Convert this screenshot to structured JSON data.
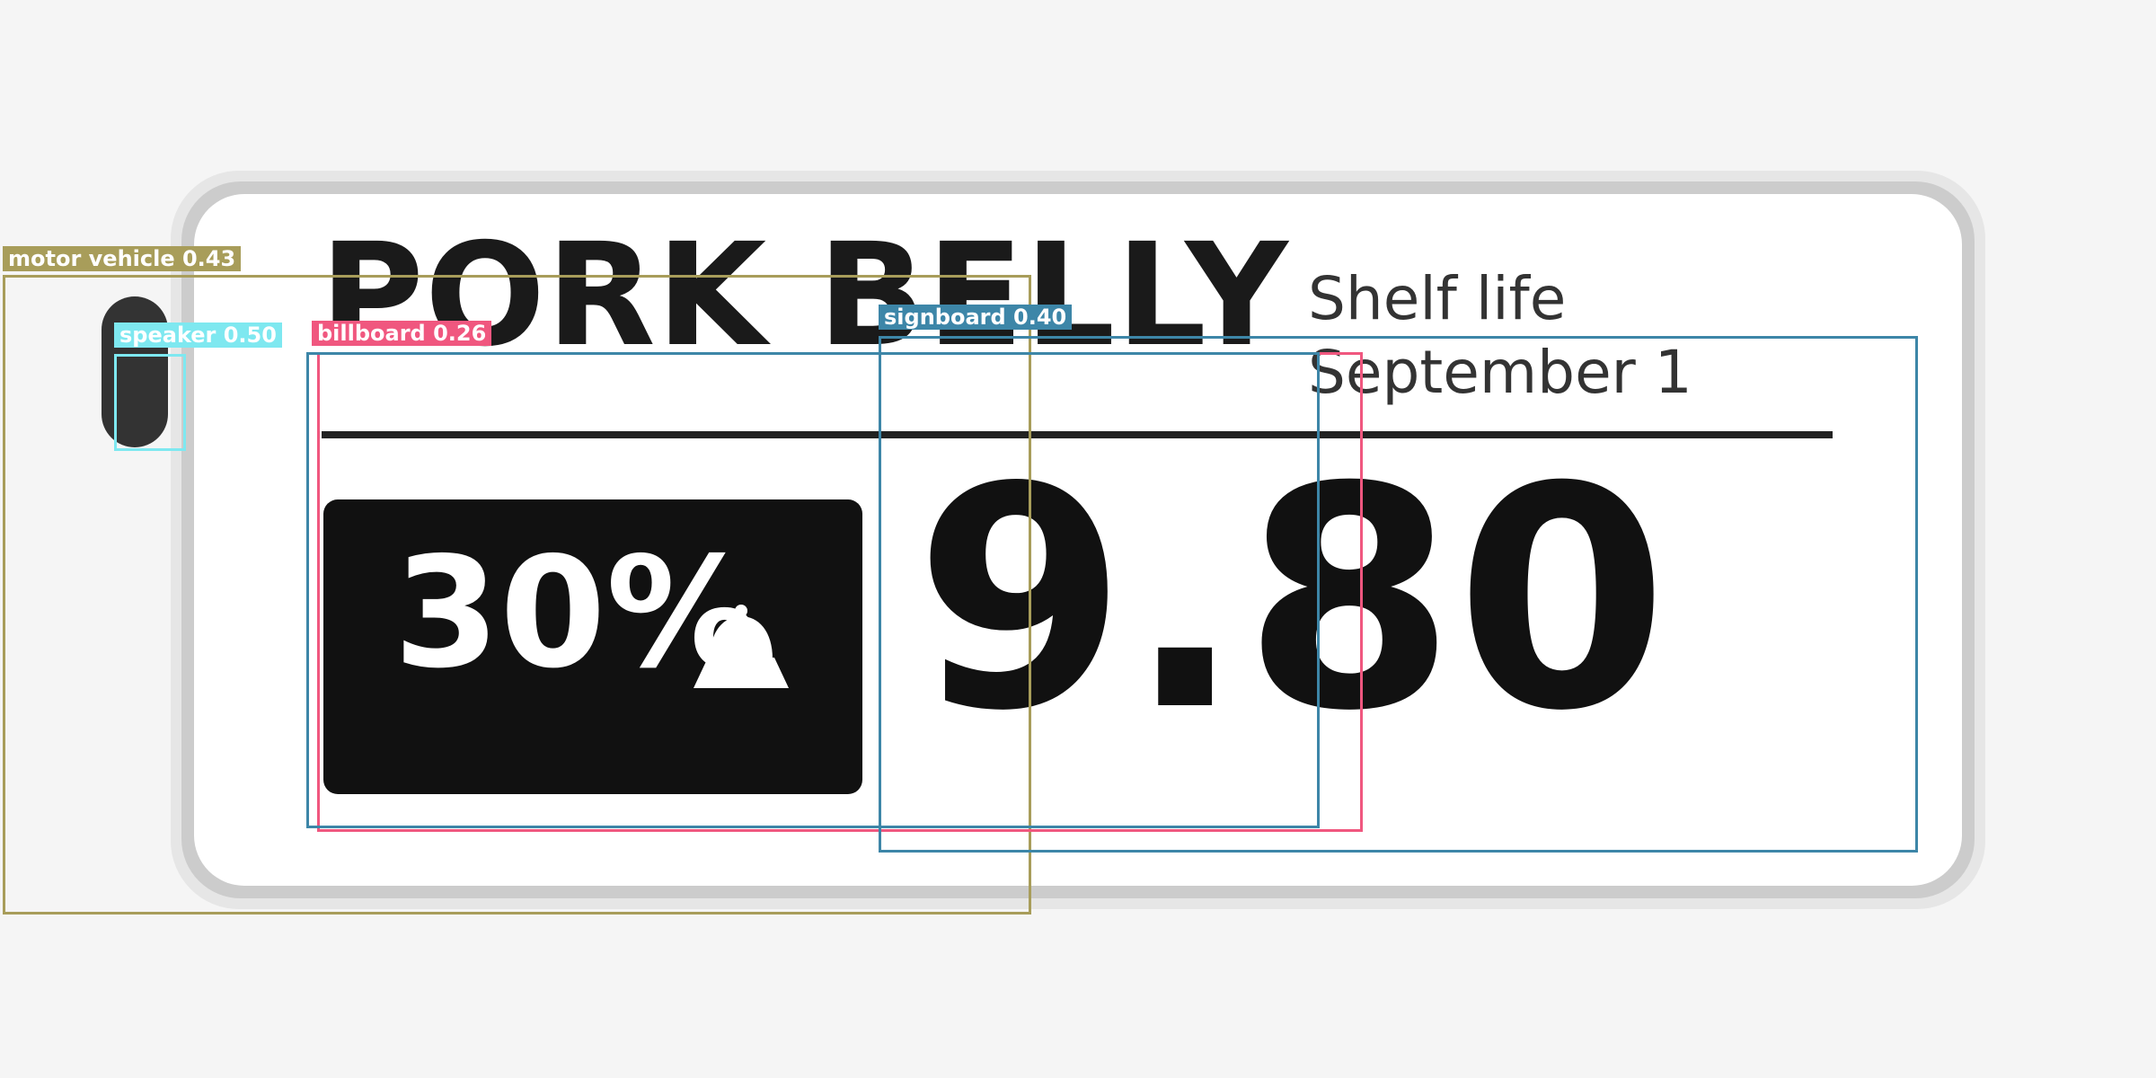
{
  "tag": {
    "product_name": "PORK BELLY",
    "shelf_life_label": "Shelf life",
    "shelf_life_date": "September 1",
    "discount": "30%",
    "price": "9.80"
  },
  "detections": [
    {
      "label": "motor vehicle 0.43",
      "color": "#a89d5a"
    },
    {
      "label": "speaker 0.50",
      "color": "#7ee8f0"
    },
    {
      "label": "billboard 0.26",
      "color": "#f0577f"
    },
    {
      "label": "signboard 0.40",
      "color": "#3d86a8"
    }
  ],
  "icons": {
    "hanger": "hanger-slot-icon",
    "bell": "bell-icon"
  }
}
